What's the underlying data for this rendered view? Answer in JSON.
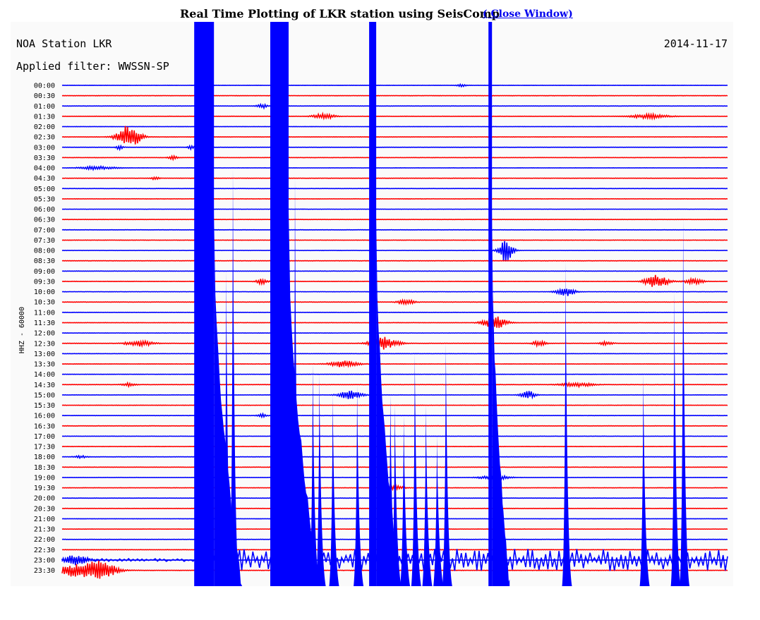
{
  "header": {
    "title": "Real Time Plotting of LKR station using SeisComp",
    "close_link": "( Close Window)"
  },
  "chart_data": {
    "type": "line",
    "station_label": "NOA Station LKR",
    "filter_label": "Applied filter: WWSSN-SP",
    "date": "2014-11-17",
    "ylabel": "HHZ - 60000",
    "rows": [
      "00:00",
      "00:30",
      "01:00",
      "01:30",
      "02:00",
      "02:30",
      "03:00",
      "03:30",
      "04:00",
      "04:30",
      "05:00",
      "05:30",
      "06:00",
      "06:30",
      "07:00",
      "07:30",
      "08:00",
      "08:30",
      "09:00",
      "09:30",
      "10:00",
      "10:30",
      "11:00",
      "11:30",
      "12:00",
      "12:30",
      "13:00",
      "13:30",
      "14:00",
      "14:30",
      "15:00",
      "15:30",
      "16:00",
      "16:30",
      "17:00",
      "17:30",
      "18:00",
      "18:30",
      "19:00",
      "19:30",
      "20:00",
      "20:30",
      "21:00",
      "21:30",
      "22:00",
      "22:30",
      "23:00",
      "23:30"
    ],
    "trace_colors": [
      "#0000ff",
      "#ff0000"
    ],
    "background": "#fafafa",
    "x_unit": "minutes",
    "x_range": [
      0,
      30
    ],
    "grid": false,
    "events": [
      {
        "row": 0,
        "minute": 18.0,
        "amp": 0.3,
        "width": 0.2
      },
      {
        "row": 2,
        "minute": 9.0,
        "amp": 0.6,
        "width": 0.2
      },
      {
        "row": 3,
        "minute": 11.8,
        "amp": 0.7,
        "width": 0.45
      },
      {
        "row": 3,
        "minute": 26.5,
        "amp": 0.5,
        "width": 0.8
      },
      {
        "row": 5,
        "minute": 3.0,
        "amp": 3.0,
        "width": 0.5
      },
      {
        "row": 6,
        "minute": 2.6,
        "amp": 0.6,
        "width": 0.15
      },
      {
        "row": 6,
        "minute": 5.8,
        "amp": 0.5,
        "width": 0.15
      },
      {
        "row": 7,
        "minute": 5.0,
        "amp": 0.5,
        "width": 0.2
      },
      {
        "row": 8,
        "minute": 1.6,
        "amp": 0.4,
        "width": 0.8
      },
      {
        "row": 9,
        "minute": 4.2,
        "amp": 0.5,
        "width": 0.15
      },
      {
        "row": 16,
        "minute": 20.0,
        "amp": 3.0,
        "width": 0.3
      },
      {
        "row": 19,
        "minute": 9.0,
        "amp": 0.6,
        "width": 0.25
      },
      {
        "row": 19,
        "minute": 26.8,
        "amp": 1.5,
        "width": 0.5
      },
      {
        "row": 19,
        "minute": 28.5,
        "amp": 0.7,
        "width": 0.4
      },
      {
        "row": 20,
        "minute": 22.7,
        "amp": 1.2,
        "width": 0.4
      },
      {
        "row": 21,
        "minute": 15.5,
        "amp": 0.6,
        "width": 0.35
      },
      {
        "row": 23,
        "minute": 19.5,
        "amp": 1.6,
        "width": 0.5
      },
      {
        "row": 25,
        "minute": 3.5,
        "amp": 0.7,
        "width": 0.6
      },
      {
        "row": 25,
        "minute": 14.5,
        "amp": 1.5,
        "width": 0.6
      },
      {
        "row": 25,
        "minute": 21.5,
        "amp": 0.6,
        "width": 0.3
      },
      {
        "row": 25,
        "minute": 24.5,
        "amp": 0.4,
        "width": 0.3
      },
      {
        "row": 27,
        "minute": 12.7,
        "amp": 0.8,
        "width": 0.6
      },
      {
        "row": 29,
        "minute": 3.0,
        "amp": 0.4,
        "width": 0.3
      },
      {
        "row": 29,
        "minute": 23.2,
        "amp": 0.5,
        "width": 0.7
      },
      {
        "row": 30,
        "minute": 13.0,
        "amp": 1.0,
        "width": 0.5
      },
      {
        "row": 30,
        "minute": 21.0,
        "amp": 1.0,
        "width": 0.3
      },
      {
        "row": 32,
        "minute": 9.0,
        "amp": 0.4,
        "width": 0.2
      },
      {
        "row": 36,
        "minute": 0.8,
        "amp": 0.3,
        "width": 0.3
      },
      {
        "row": 38,
        "minute": 19.5,
        "amp": 0.6,
        "width": 0.6
      },
      {
        "row": 39,
        "minute": 15.0,
        "amp": 0.5,
        "width": 0.4
      },
      {
        "row": 46,
        "minute": 0.6,
        "amp": 1.2,
        "width": 0.6
      },
      {
        "row": 47,
        "minute": 1.0,
        "amp": 1.8,
        "width": 1.2
      },
      {
        "row": 47,
        "minute": 1.9,
        "amp": 1.5,
        "width": 0.5
      }
    ],
    "saturated_spikes_minutes": [
      6.4,
      9.8,
      14.0,
      19.3
    ],
    "spike_start_rows": [
      0,
      0,
      0,
      0
    ],
    "coda_spikes_minutes": [
      7.4,
      7.7,
      10.5,
      11.3,
      11.6,
      12.2,
      13.3,
      14.8,
      15.0,
      15.4,
      15.9,
      16.4,
      16.9,
      17.3,
      22.7,
      26.2,
      27.6,
      28.0
    ],
    "coda_spike_tops": [
      "09:00",
      "04:00",
      "04:30",
      "13:30",
      "14:00",
      "15:00",
      "14:30",
      "15:00",
      "15:30",
      "16:00",
      "13:00",
      "15:30",
      "17:00",
      "12:30",
      "08:30",
      "14:00",
      "10:00",
      "06:30"
    ]
  }
}
